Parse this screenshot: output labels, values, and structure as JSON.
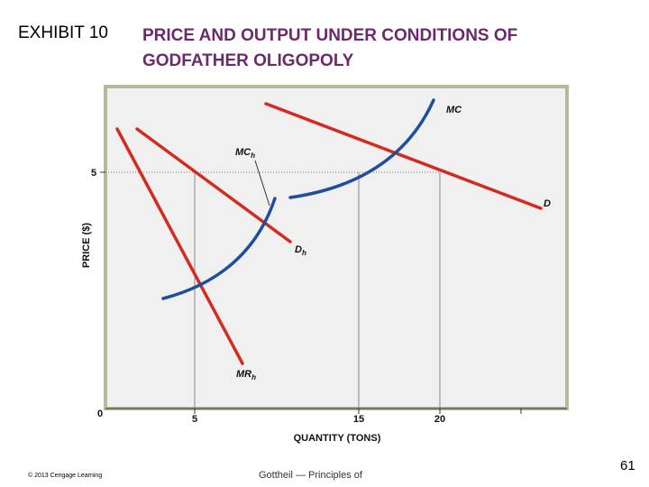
{
  "title": {
    "prefix": "EXHIBIT 10",
    "line1": "PRICE AND OUTPUT UNDER CONDITIONS OF",
    "line2": "GODFATHER OLIGOPOLY",
    "color": "#6b2a6b"
  },
  "diagram": {
    "y_axis_label": "PRICE ($)",
    "x_axis_label": "QUANTITY (TONS)",
    "origin_label": "0",
    "y_ticks": [
      {
        "value": 5,
        "label": "5"
      }
    ],
    "x_ticks": [
      {
        "value": 5,
        "label": "5"
      },
      {
        "value": 15,
        "label": "15"
      },
      {
        "value": 20,
        "label": "20"
      },
      {
        "value": 25,
        "label": ""
      }
    ],
    "curves": {
      "D": {
        "label": "D",
        "color": "#d42a20"
      },
      "MC": {
        "label": "MC",
        "color": "#1f4e9c"
      },
      "MCh": {
        "label": "MC",
        "sub": "h",
        "color": "#1f4e9c"
      },
      "Dh": {
        "label": "D",
        "sub": "h",
        "color": "#d42a20"
      },
      "MRh": {
        "label": "MR",
        "sub": "h",
        "color": "#d42a20"
      }
    },
    "frame_color": "#b8b89a",
    "background": "#f0f0f0"
  },
  "footer": {
    "copyright": "© 2013 Cengage Learning",
    "credit": "Gottheil — Principles of",
    "page_number": "61"
  }
}
